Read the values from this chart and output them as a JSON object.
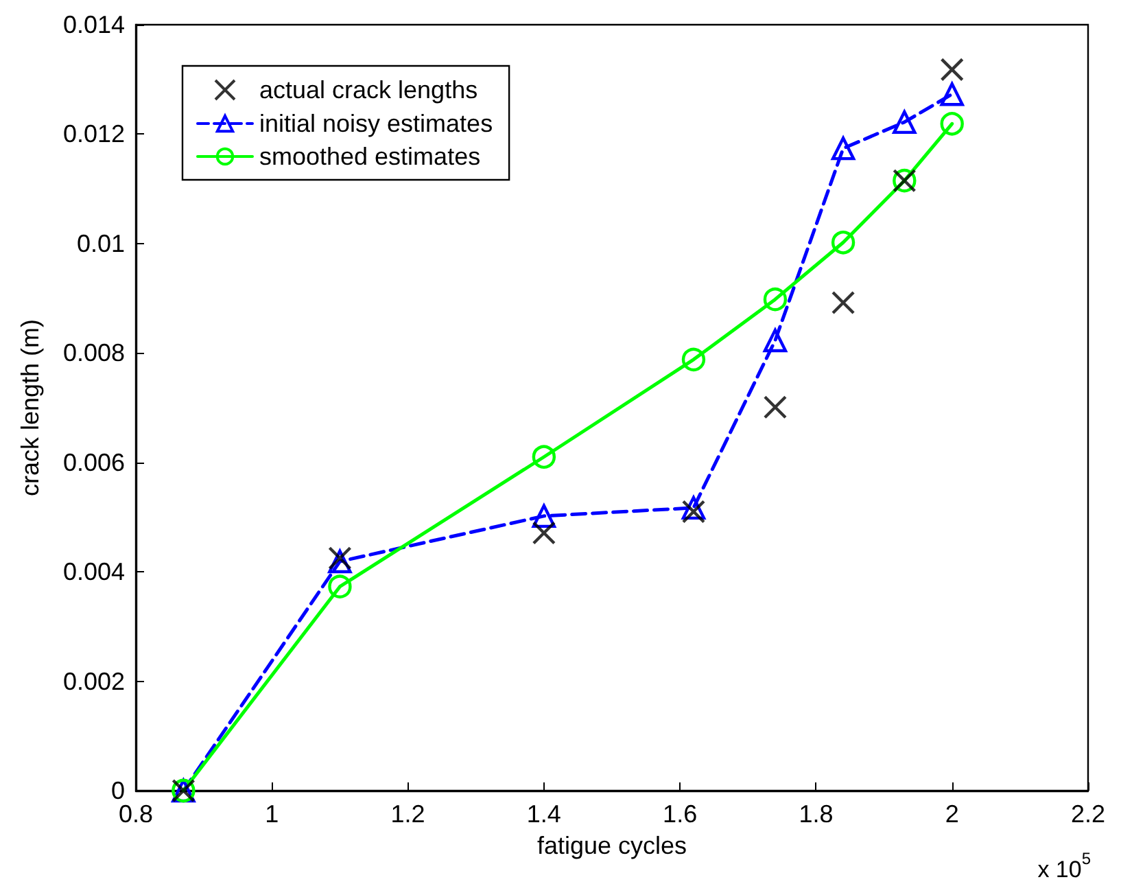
{
  "chart_data": {
    "type": "line",
    "xlabel": "fatigue cycles",
    "ylabel": "crack length (m)",
    "annotations": [
      "x 10$^{5}$"
    ],
    "x": [
      0.87,
      1.1,
      1.4,
      1.62,
      1.74,
      1.84,
      1.93,
      2.0
    ],
    "series": [
      {
        "name": "actual crack lengths",
        "type": "scatter",
        "color": "#000000",
        "marker": "cross",
        "values": [
          0,
          0.00425,
          0.00471,
          0.0051,
          0.00701,
          0.00892,
          0.01115,
          0.01318
        ]
      },
      {
        "name": "initial noisy estimates",
        "type": "line",
        "color": "#0000ff",
        "marker": "triangle",
        "line_style": "dashed",
        "values": [
          0,
          0.00419,
          0.00502,
          0.00517,
          0.00823,
          0.01174,
          0.01222,
          0.01273
        ]
      },
      {
        "name": "smoothed estimates",
        "type": "line",
        "color": "#00ff00",
        "marker": "circle",
        "line_style": "solid",
        "values": [
          0,
          0.00373,
          0.0061,
          0.00788,
          0.00898,
          0.01002,
          0.01115,
          0.01219
        ]
      }
    ],
    "xlim": [
      0.8,
      2.2
    ],
    "xticks": [
      0.8,
      1,
      1.2,
      1.4,
      1.6,
      1.8,
      2,
      2.2
    ],
    "ylim": [
      0,
      0.014
    ],
    "yticks": [
      0,
      0.002,
      0.004,
      0.006,
      0.008,
      0.01,
      0.012,
      0.014
    ],
    "grid": false,
    "legend": "top left"
  }
}
